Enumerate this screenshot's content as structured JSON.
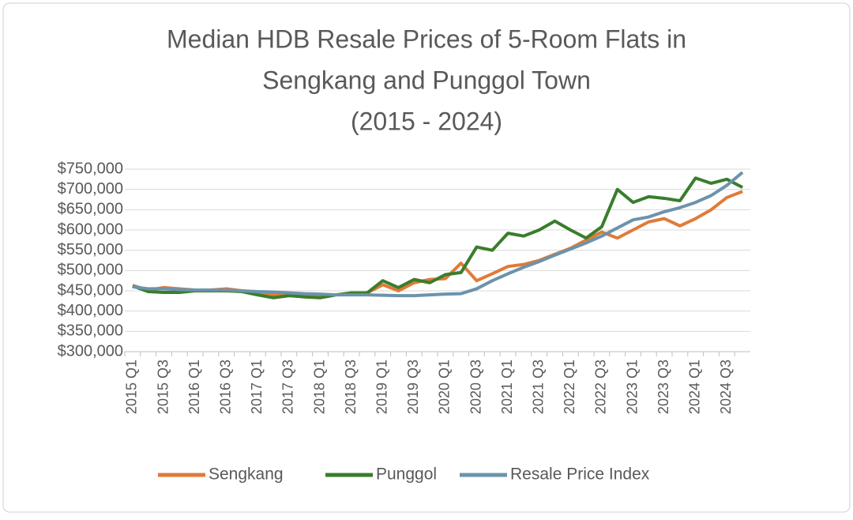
{
  "chart_data": {
    "type": "line",
    "title_lines": [
      "Median HDB Resale Prices of 5-Room Flats in",
      "Sengkang and Punggol Town",
      "(2015 - 2024)"
    ],
    "categories": [
      "2015 Q1",
      null,
      "2015 Q3",
      null,
      "2016 Q1",
      null,
      "2016 Q3",
      null,
      "2017 Q1",
      null,
      "2017 Q3",
      null,
      "2018 Q1",
      null,
      "2018 Q3",
      null,
      "2019 Q1",
      null,
      "2019 Q3",
      null,
      "2020 Q1",
      null,
      "2020 Q3",
      null,
      "2021 Q1",
      null,
      "2021 Q3",
      null,
      "2022 Q1",
      null,
      "2022 Q3",
      null,
      "2023 Q1",
      null,
      "2023 Q3",
      null,
      "2024 Q1",
      null,
      "2024 Q3",
      null
    ],
    "series": [
      {
        "name": "Sengkang",
        "color": "#e07b39",
        "values": [
          463000,
          452000,
          458000,
          455000,
          452000,
          452000,
          455000,
          450000,
          445000,
          440000,
          440000,
          442000,
          440000,
          440000,
          442000,
          445000,
          465000,
          450000,
          470000,
          478000,
          480000,
          518000,
          475000,
          492000,
          510000,
          515000,
          525000,
          540000,
          555000,
          575000,
          595000,
          580000,
          600000,
          620000,
          628000,
          610000,
          628000,
          650000,
          680000,
          695000
        ]
      },
      {
        "name": "Punggol",
        "color": "#3a7d2c",
        "values": [
          462000,
          448000,
          446000,
          446000,
          450000,
          450000,
          450000,
          448000,
          440000,
          433000,
          438000,
          435000,
          433000,
          440000,
          445000,
          445000,
          475000,
          458000,
          478000,
          470000,
          490000,
          495000,
          558000,
          550000,
          592000,
          585000,
          600000,
          622000,
          600000,
          580000,
          608000,
          700000,
          668000,
          682000,
          678000,
          672000,
          728000,
          715000,
          725000,
          705000
        ]
      },
      {
        "name": "Resale Price Index",
        "color": "#6c93ab",
        "values": [
          460000,
          455000,
          455000,
          453000,
          452000,
          452000,
          452000,
          450000,
          448000,
          447000,
          445000,
          443000,
          442000,
          440000,
          440000,
          440000,
          439000,
          438000,
          438000,
          440000,
          442000,
          443000,
          455000,
          475000,
          492000,
          508000,
          522000,
          538000,
          553000,
          568000,
          585000,
          605000,
          625000,
          632000,
          645000,
          655000,
          668000,
          685000,
          710000,
          742000
        ]
      }
    ],
    "ylim": [
      300000,
      750000
    ],
    "yticks": [
      {
        "value": 300000,
        "label": "$300,000"
      },
      {
        "value": 350000,
        "label": "$350,000"
      },
      {
        "value": 400000,
        "label": "$400,000"
      },
      {
        "value": 450000,
        "label": "$450,000"
      },
      {
        "value": 500000,
        "label": "$500,000"
      },
      {
        "value": 550000,
        "label": "$550,000"
      },
      {
        "value": 600000,
        "label": "$600,000"
      },
      {
        "value": 650000,
        "label": "$650,000"
      },
      {
        "value": 700000,
        "label": "$700,000"
      },
      {
        "value": 750000,
        "label": "$750,000"
      }
    ],
    "grid": true,
    "legend": "bottom"
  }
}
